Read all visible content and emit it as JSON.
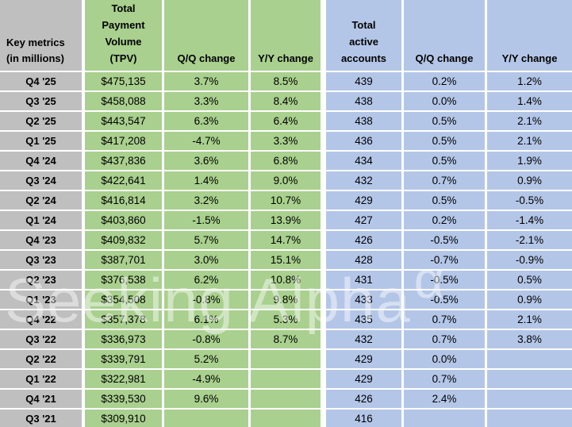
{
  "colors": {
    "green": "#A9D08E",
    "blue": "#B4C6E7",
    "gray": "#BFBFBF",
    "gridline": "#FFFFFF",
    "text": "#000000"
  },
  "header": {
    "key_metrics": "Key metrics\n(in millions)",
    "tpv": "Total\nPayment\nVolume\n(TPV)",
    "tpv_qq_change": "Q/Q change",
    "tpv_yy_change": "Y/Y change",
    "active_accounts": "Total\nactive\naccounts",
    "accounts_qq_change": "Q/Q change",
    "accounts_yy_change": "Y/Y change"
  },
  "watermark": {
    "text": "Seeking Alpha",
    "alpha_symbol": "α"
  },
  "chart_data": {
    "type": "table",
    "columns": [
      "Key metrics (in millions)",
      "Total Payment Volume (TPV)",
      "Q/Q change",
      "Y/Y change",
      "Total active accounts",
      "Q/Q change",
      "Y/Y change"
    ],
    "rows": [
      [
        "Q4 '25",
        "$475,135",
        "3.7%",
        "8.5%",
        "439",
        "0.2%",
        "1.2%"
      ],
      [
        "Q3 '25",
        "$458,088",
        "3.3%",
        "8.4%",
        "438",
        "0.0%",
        "1.4%"
      ],
      [
        "Q2 '25",
        "$443,547",
        "6.3%",
        "6.4%",
        "438",
        "0.5%",
        "2.1%"
      ],
      [
        "Q1 '25",
        "$417,208",
        "-4.7%",
        "3.3%",
        "436",
        "0.5%",
        "2.1%"
      ],
      [
        "Q4 '24",
        "$437,836",
        "3.6%",
        "6.8%",
        "434",
        "0.5%",
        "1.9%"
      ],
      [
        "Q3 '24",
        "$422,641",
        "1.4%",
        "9.0%",
        "432",
        "0.7%",
        "0.9%"
      ],
      [
        "Q2 '24",
        "$416,814",
        "3.2%",
        "10.7%",
        "429",
        "0.5%",
        "-0.5%"
      ],
      [
        "Q1 '24",
        "$403,860",
        "-1.5%",
        "13.9%",
        "427",
        "0.2%",
        "-1.4%"
      ],
      [
        "Q4 '23",
        "$409,832",
        "5.7%",
        "14.7%",
        "426",
        "-0.5%",
        "-2.1%"
      ],
      [
        "Q3 '23",
        "$387,701",
        "3.0%",
        "15.1%",
        "428",
        "-0.7%",
        "-0.9%"
      ],
      [
        "Q2 '23",
        "$376,538",
        "6.2%",
        "10.8%",
        "431",
        "-0.5%",
        "0.5%"
      ],
      [
        "Q1 '23",
        "$354,508",
        "-0.8%",
        "9.8%",
        "433",
        "-0.5%",
        "0.9%"
      ],
      [
        "Q4 '22",
        "$357,378",
        "6.1%",
        "5.3%",
        "435",
        "0.7%",
        "2.1%"
      ],
      [
        "Q3 '22",
        "$336,973",
        "-0.8%",
        "8.7%",
        "432",
        "0.7%",
        "3.8%"
      ],
      [
        "Q2 '22",
        "$339,791",
        "5.2%",
        "",
        "429",
        "0.0%",
        ""
      ],
      [
        "Q1 '22",
        "$322,981",
        "-4.9%",
        "",
        "429",
        "0.7%",
        ""
      ],
      [
        "Q4 '21",
        "$339,530",
        "9.6%",
        "",
        "426",
        "2.4%",
        ""
      ],
      [
        "Q3 '21",
        "$309,910",
        "",
        "",
        "416",
        "",
        ""
      ]
    ]
  }
}
